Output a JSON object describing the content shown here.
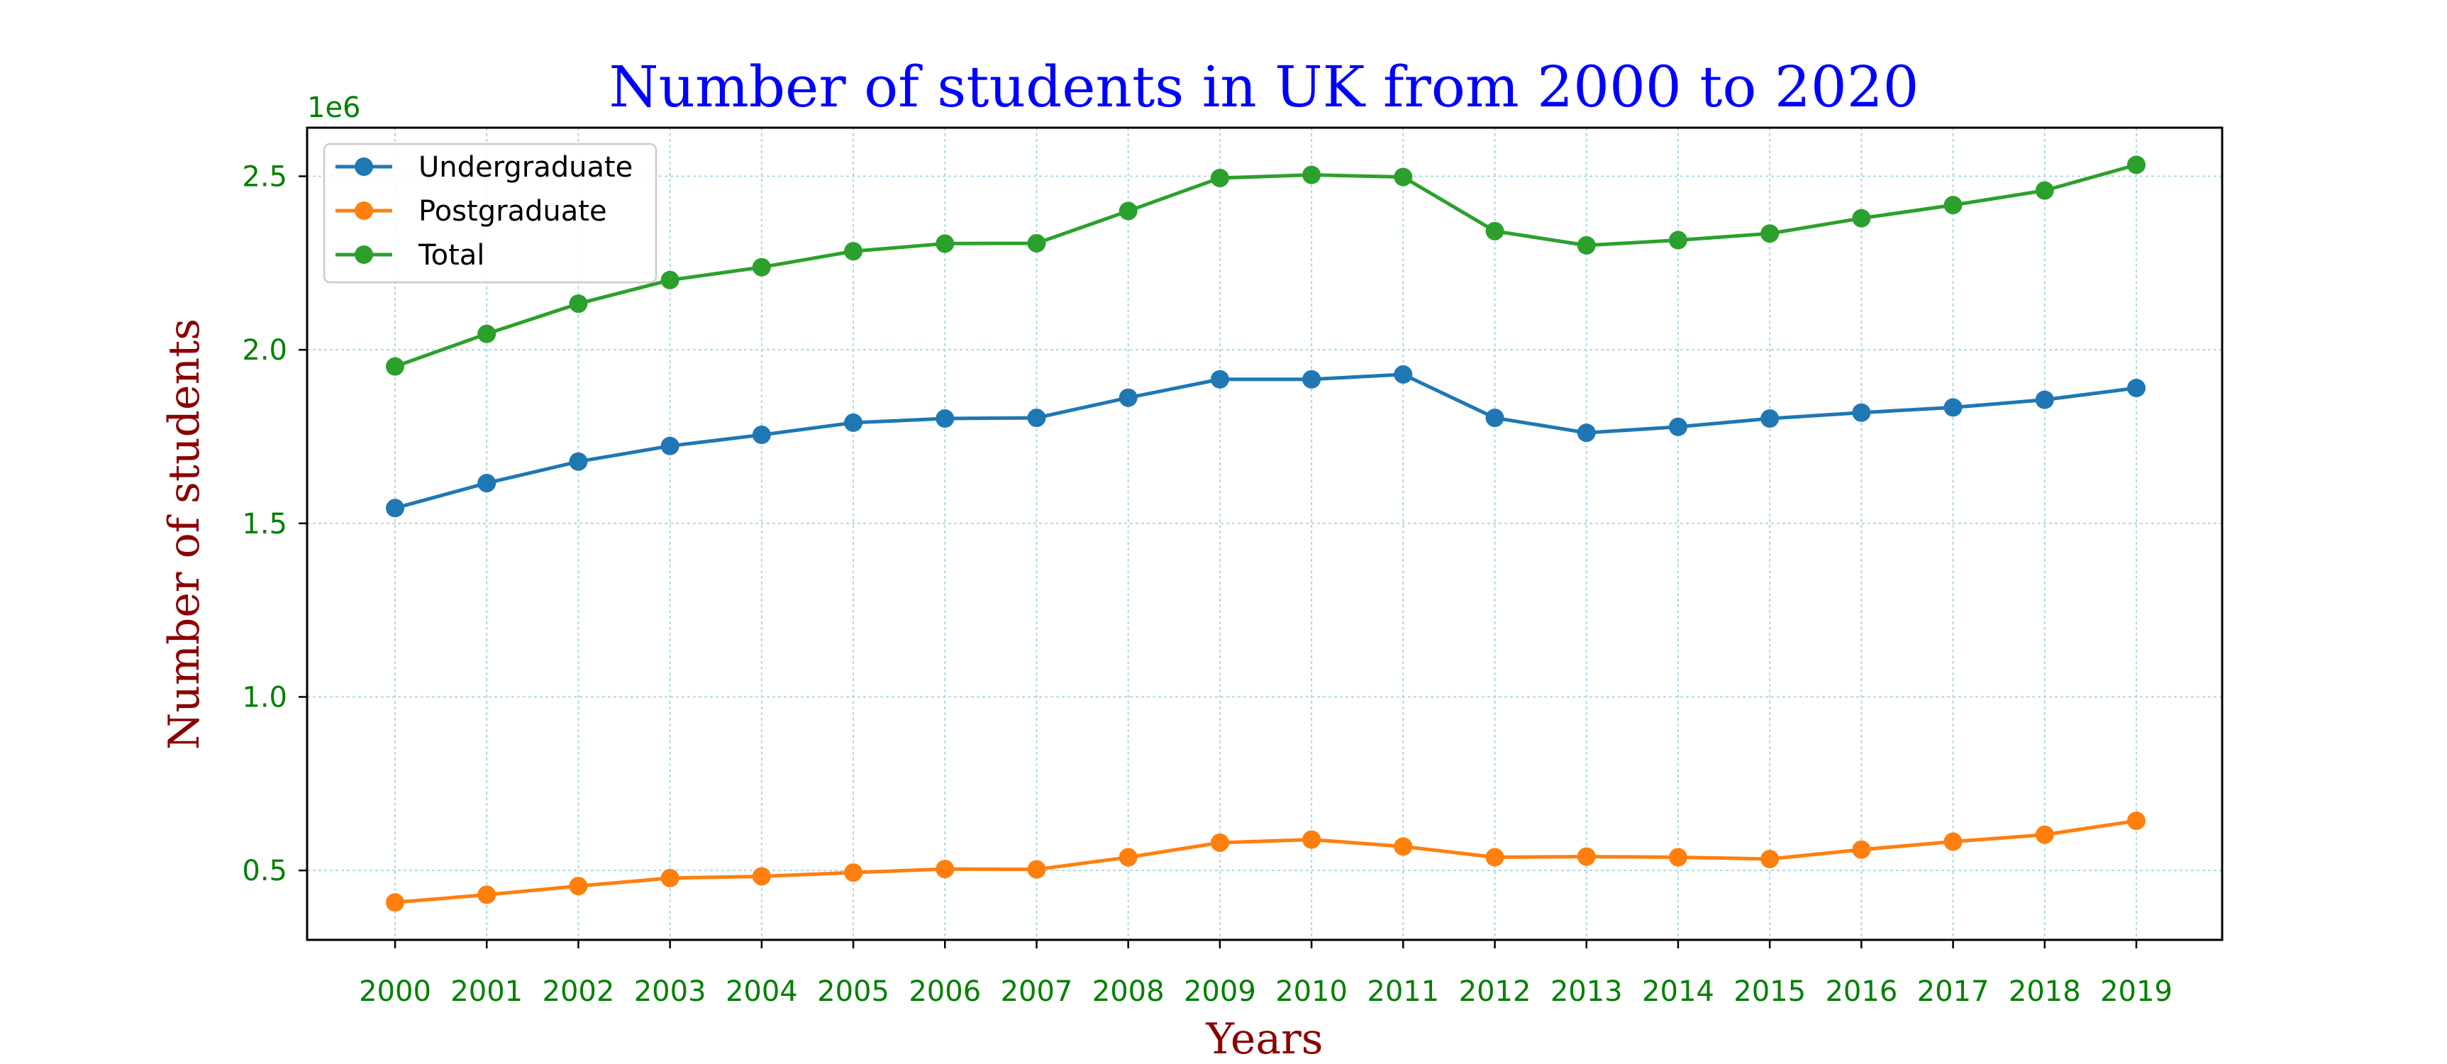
{
  "chart_data": {
    "type": "line",
    "title": "Number of students in UK from 2000 to 2020",
    "xlabel": "Years",
    "ylabel": "Number of students",
    "y_offset_label": "1e6",
    "categories": [
      "2000",
      "2001",
      "2002",
      "2003",
      "2004",
      "2005",
      "2006",
      "2007",
      "2008",
      "2009",
      "2010",
      "2011",
      "2012",
      "2013",
      "2014",
      "2015",
      "2016",
      "2017",
      "2018",
      "2019"
    ],
    "yticks": [
      0.5,
      1.0,
      1.5,
      2.0,
      2.5
    ],
    "ytick_labels": [
      "0.5",
      "1.0",
      "1.5",
      "2.0",
      "2.5"
    ],
    "ylim": [
      0.3,
      2.64
    ],
    "grid": true,
    "legend_position": "top-left",
    "series": [
      {
        "name": "Undergraduate",
        "color": "#1f77b4",
        "values": [
          1.544,
          1.616,
          1.678,
          1.723,
          1.755,
          1.79,
          1.802,
          1.804,
          1.862,
          1.915,
          1.915,
          1.929,
          1.804,
          1.761,
          1.778,
          1.802,
          1.819,
          1.834,
          1.856,
          1.89
        ]
      },
      {
        "name": "Postgraduate",
        "color": "#ff7f0e",
        "values": [
          0.408,
          0.43,
          0.455,
          0.478,
          0.483,
          0.494,
          0.504,
          0.503,
          0.538,
          0.58,
          0.589,
          0.569,
          0.538,
          0.54,
          0.538,
          0.533,
          0.56,
          0.583,
          0.603,
          0.643
        ]
      },
      {
        "name": "Total",
        "color": "#2ca02c",
        "values": [
          1.952,
          2.046,
          2.133,
          2.201,
          2.238,
          2.284,
          2.306,
          2.307,
          2.4,
          2.495,
          2.504,
          2.498,
          2.342,
          2.301,
          2.316,
          2.335,
          2.379,
          2.417,
          2.459,
          2.533
        ]
      }
    ]
  }
}
